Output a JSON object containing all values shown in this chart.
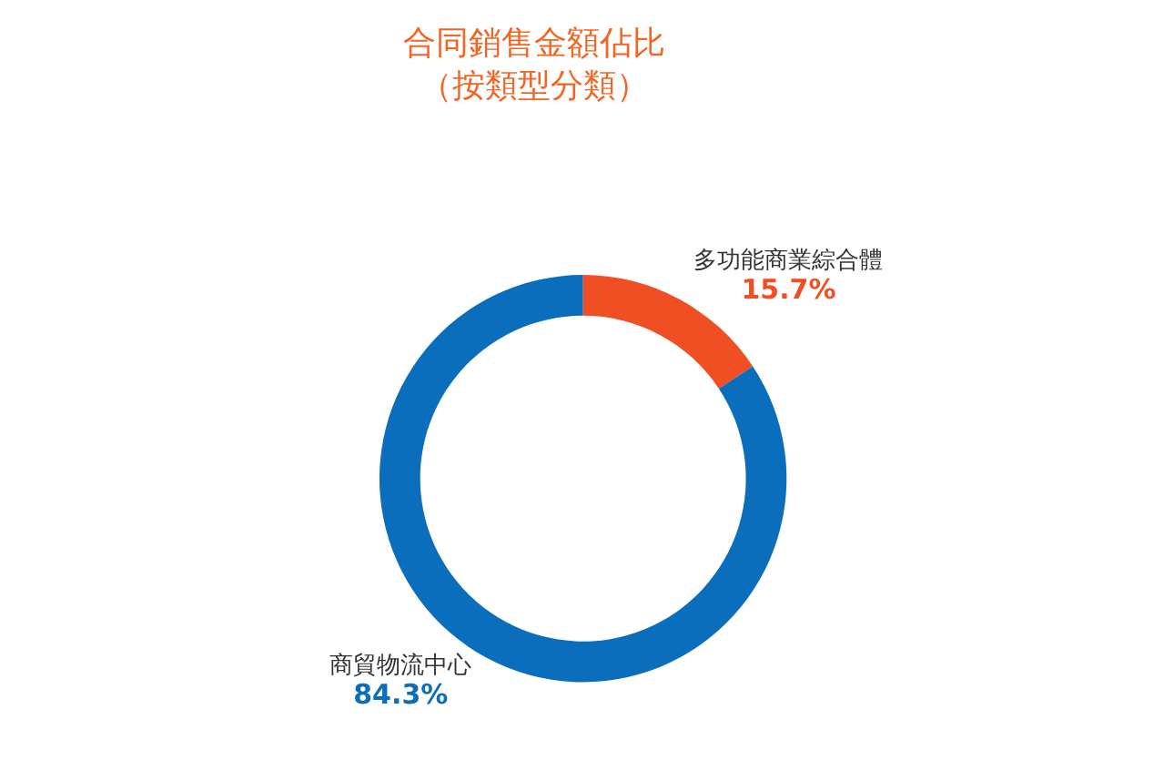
{
  "chart_data": {
    "type": "donut",
    "title": "合同銷售金額佔比",
    "subtitle": "（按類型分類）",
    "value_labels": [
      "15.7%",
      "84.3%"
    ],
    "categories": [
      "多功能商業綜合體",
      "商貿物流中心"
    ],
    "values": [
      15.7,
      84.3
    ],
    "colors": [
      "#f04e23",
      "#0a6ebd"
    ],
    "legend": false
  }
}
